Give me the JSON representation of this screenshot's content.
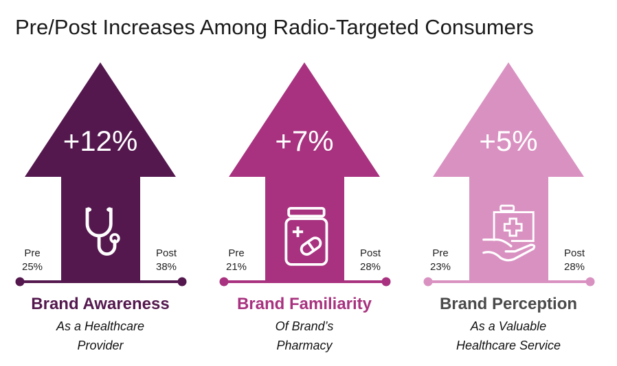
{
  "title": "Pre/Post Increases Among Radio-Targeted Consumers",
  "metrics": [
    {
      "increase": "+12%",
      "pre_label": "Pre",
      "pre_value": "25%",
      "post_label": "Post",
      "post_value": "38%",
      "heading": "Brand Awareness",
      "sub1": "As a Healthcare",
      "sub2": "Provider",
      "icon": "stethoscope-icon",
      "color": "#54184e",
      "heading_color": "#54184e"
    },
    {
      "increase": "+7%",
      "pre_label": "Pre",
      "pre_value": "21%",
      "post_label": "Post",
      "post_value": "28%",
      "heading": "Brand Familiarity",
      "sub1": "Of Brand’s",
      "sub2": "Pharmacy",
      "icon": "pill-bottle-icon",
      "color": "#a8327f",
      "heading_color": "#a8327f"
    },
    {
      "increase": "+5%",
      "pre_label": "Pre",
      "pre_value": "23%",
      "post_label": "Post",
      "post_value": "28%",
      "heading": "Brand Perception",
      "sub1": "As a Valuable",
      "sub2": "Healthcare Service",
      "icon": "medical-kit-hand-icon",
      "color": "#d991c1",
      "heading_color": "#4a4a4a"
    }
  ]
}
